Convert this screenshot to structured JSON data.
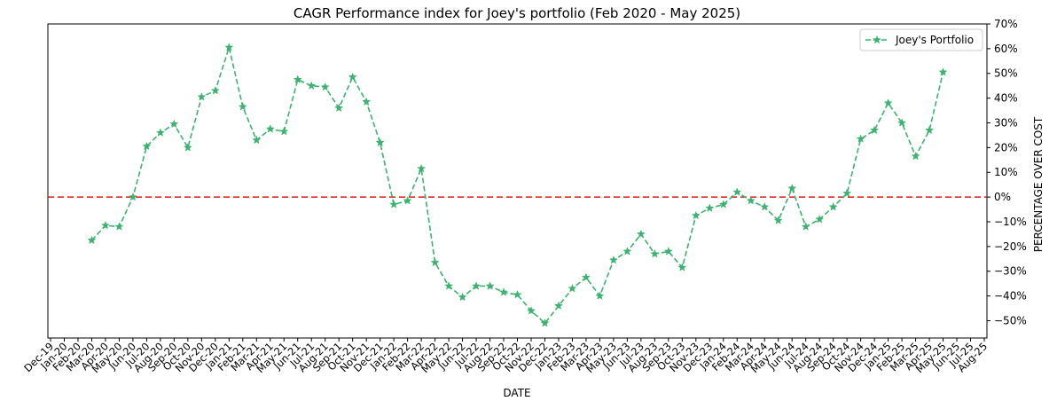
{
  "chart_data": {
    "type": "line",
    "title": "CAGR Performance index for Joey's portfolio (Feb 2020 - May 2025)",
    "xlabel": "DATE",
    "ylabel": "PERCENTAGE OVER COST",
    "y_axis_side": "right",
    "ylim": [
      -57,
      70
    ],
    "yticks": [
      -50,
      -40,
      -30,
      -20,
      -10,
      0,
      10,
      20,
      30,
      40,
      50,
      60,
      70
    ],
    "ytick_labels": [
      "−50%",
      "−40%",
      "−30%",
      "−20%",
      "−10%",
      "0%",
      "10%",
      "20%",
      "30%",
      "40%",
      "50%",
      "60%",
      "70%"
    ],
    "x_tick_labels": [
      "Dec-19",
      "Jan-20",
      "Feb-20",
      "Mar-20",
      "Apr-20",
      "May-20",
      "Jun-20",
      "Jul-20",
      "Aug-20",
      "Sep-20",
      "Oct-20",
      "Nov-20",
      "Dec-20",
      "Jan-21",
      "Feb-21",
      "Mar-21",
      "Apr-21",
      "May-21",
      "Jun-21",
      "Jul-21",
      "Aug-21",
      "Sep-21",
      "Oct-21",
      "Nov-21",
      "Dec-21",
      "Jan-22",
      "Feb-22",
      "Mar-22",
      "Apr-22",
      "May-22",
      "Jun-22",
      "Jul-22",
      "Aug-22",
      "Sep-22",
      "Oct-22",
      "Nov-22",
      "Dec-22",
      "Jan-23",
      "Feb-23",
      "Mar-23",
      "Apr-23",
      "May-23",
      "Jun-23",
      "Jul-23",
      "Aug-23",
      "Sep-23",
      "Oct-23",
      "Nov-23",
      "Dec-23",
      "Jan-24",
      "Feb-24",
      "Mar-24",
      "Apr-24",
      "May-24",
      "Jun-24",
      "Jul-24",
      "Aug-24",
      "Sep-24",
      "Oct-24",
      "Nov-24",
      "Dec-24",
      "Jan-25",
      "Feb-25",
      "Mar-25",
      "Apr-25",
      "May-25",
      "Jun-25",
      "Jul-25",
      "Aug-25"
    ],
    "series": [
      {
        "name": "Joey's Portfolio",
        "color": "#3cb371",
        "marker": "star",
        "line_style": "dashed",
        "x": [
          "Mar-20",
          "Apr-20",
          "May-20",
          "Jun-20",
          "Jul-20",
          "Aug-20",
          "Sep-20",
          "Oct-20",
          "Nov-20",
          "Dec-20",
          "Jan-21",
          "Feb-21",
          "Mar-21",
          "Apr-21",
          "May-21",
          "Jun-21",
          "Jul-21",
          "Aug-21",
          "Sep-21",
          "Oct-21",
          "Nov-21",
          "Dec-21",
          "Jan-22",
          "Feb-22",
          "Mar-22",
          "Apr-22",
          "May-22",
          "Jun-22",
          "Jul-22",
          "Aug-22",
          "Sep-22",
          "Oct-22",
          "Nov-22",
          "Dec-22",
          "Jan-23",
          "Feb-23",
          "Mar-23",
          "Apr-23",
          "May-23",
          "Jun-23",
          "Jul-23",
          "Aug-23",
          "Sep-23",
          "Oct-23",
          "Nov-23",
          "Dec-23",
          "Jan-24",
          "Feb-24",
          "Mar-24",
          "Apr-24",
          "May-24",
          "Jun-24",
          "Jul-24",
          "Aug-24",
          "Sep-24",
          "Oct-24",
          "Nov-24",
          "Dec-24",
          "Jan-25",
          "Feb-25",
          "Mar-25",
          "Apr-25",
          "May-25"
        ],
        "y": [
          -17.5,
          -11.5,
          -12,
          0,
          20.5,
          26,
          29.5,
          20,
          40.5,
          43,
          60.5,
          36.5,
          23,
          27.5,
          26.5,
          47.5,
          45,
          44.5,
          36,
          48.5,
          38.5,
          22,
          -3,
          -1.5,
          11.5,
          -26.5,
          -36,
          -40.5,
          -36,
          -36,
          -38.5,
          -39.5,
          -46,
          -51,
          -44,
          -37,
          -32.5,
          -40,
          -25.5,
          -22,
          -15,
          -23,
          -22,
          -28.5,
          -7.5,
          -4.5,
          -3,
          2,
          -1.5,
          -4,
          -9.5,
          3.5,
          -12,
          -9,
          -4,
          1.5,
          23.5,
          27,
          38,
          30,
          16.5,
          27,
          50.5
        ]
      }
    ],
    "reference_lines": [
      {
        "y": 0,
        "color": "#e31a1c",
        "line_style": "dashed"
      }
    ],
    "legend": {
      "position": "top-right"
    },
    "grid": false
  }
}
